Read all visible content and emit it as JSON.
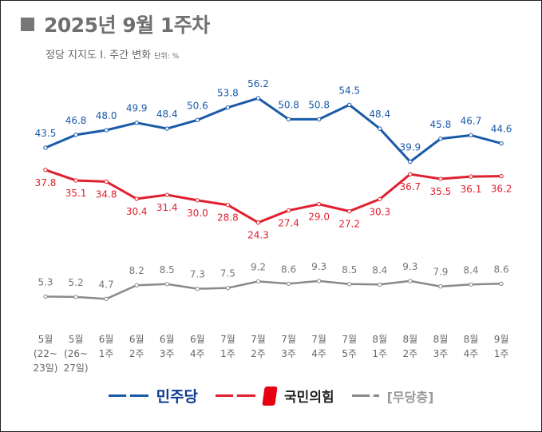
{
  "header": {
    "title": "2025년 9월 1주차",
    "subtitle": "정당 지지도 Ⅰ. 주간 변화",
    "unit": "단위: %"
  },
  "chart_data": {
    "type": "line",
    "categories": [
      "5월\n(22~\n23일)",
      "5월\n(26~\n27일)",
      "6월\n1주",
      "6월\n2주",
      "6월\n3주",
      "6월\n4주",
      "7월\n1주",
      "7월\n2주",
      "7월\n3주",
      "7월\n4주",
      "7월\n5주",
      "8월\n1주",
      "8월\n2주",
      "8월\n3주",
      "8월\n4주",
      "9월\n1주"
    ],
    "series": [
      {
        "name": "민주당",
        "color": "#1a5aa8",
        "values": [
          43.5,
          46.8,
          48.0,
          49.9,
          48.4,
          50.6,
          53.8,
          56.2,
          50.8,
          50.8,
          54.5,
          48.4,
          39.9,
          45.8,
          46.7,
          44.6
        ]
      },
      {
        "name": "국민의힘",
        "color": "#e0202e",
        "values": [
          37.8,
          35.1,
          34.8,
          30.4,
          31.4,
          30.0,
          28.8,
          24.3,
          27.4,
          29.0,
          27.2,
          30.3,
          36.7,
          35.5,
          36.1,
          36.2
        ]
      },
      {
        "name": "[무당층]",
        "color": "#8a8a8a",
        "values": [
          5.3,
          5.2,
          4.7,
          8.2,
          8.5,
          7.3,
          7.5,
          9.2,
          8.6,
          9.3,
          8.5,
          8.4,
          9.3,
          7.9,
          8.4,
          8.6
        ]
      }
    ],
    "legend": "bottom",
    "grid": false,
    "data_labels": true
  }
}
